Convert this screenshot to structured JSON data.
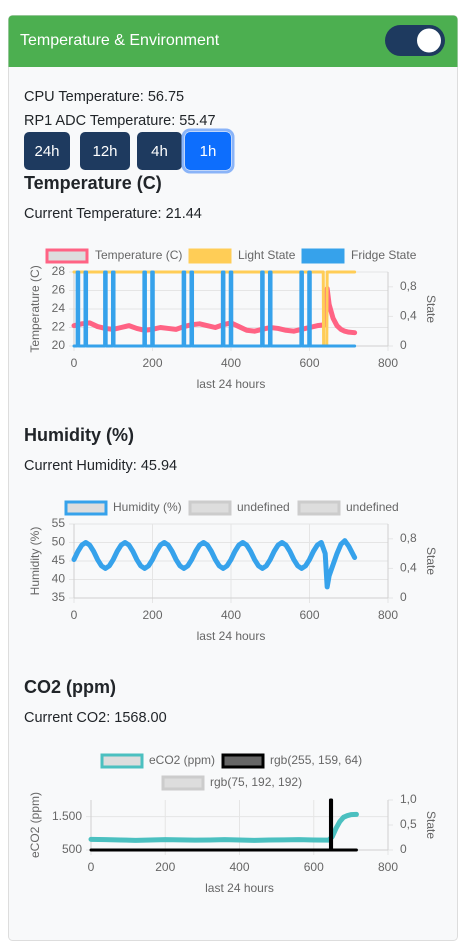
{
  "header": {
    "title": "Temperature & Environment"
  },
  "status": {
    "cpu": "CPU Temperature: 56.75",
    "rp1": "RP1 ADC Temperature: 55.47"
  },
  "buttons": [
    "24h",
    "12h",
    "4h",
    "1h"
  ],
  "active_button": "1h",
  "charts": [
    {
      "type": "line",
      "title": "Temperature (C)",
      "current": "Current Temperature: 21.44",
      "xlabel": "last 24 hours",
      "ylabel": "Temperature (C)",
      "y2label": "State",
      "xlim": [
        0,
        800
      ],
      "xticks": [
        0,
        200,
        400,
        600,
        800
      ],
      "ylim": [
        20,
        28
      ],
      "yticks": [
        20,
        22,
        24,
        26,
        28
      ],
      "y2lim": [
        0,
        1
      ],
      "y2ticks": [
        0,
        {
          "value": 0.4,
          "label": "0,4"
        },
        {
          "value": 0.8,
          "label": "0,8"
        }
      ],
      "grid": true,
      "series": [
        {
          "name": "Temperature (C)",
          "color": "#ff6384",
          "legend_fill": "#dddddd",
          "x": [
            0,
            20,
            40,
            60,
            80,
            100,
            120,
            140,
            160,
            180,
            200,
            220,
            240,
            260,
            280,
            300,
            320,
            340,
            360,
            380,
            400,
            420,
            440,
            460,
            480,
            500,
            520,
            540,
            560,
            580,
            600,
            620,
            640,
            645,
            650,
            660,
            670,
            680,
            690,
            700,
            715
          ],
          "values": [
            22.2,
            22.4,
            22.5,
            22.1,
            21.9,
            21.8,
            22.0,
            22.2,
            21.9,
            21.7,
            21.8,
            22.0,
            21.9,
            21.8,
            22.1,
            22.3,
            22.4,
            22.2,
            22.0,
            22.3,
            22.5,
            22.1,
            21.7,
            21.6,
            21.8,
            22.0,
            21.9,
            21.7,
            21.6,
            21.8,
            22.0,
            22.2,
            22.3,
            26.2,
            24.5,
            23.0,
            22.2,
            21.8,
            21.6,
            21.5,
            21.44
          ]
        },
        {
          "name": "Light State",
          "color": "#ffcd56",
          "legend_fill": "#ffcd56",
          "axis": "y2",
          "x": [
            0,
            635,
            636,
            644,
            645,
            715
          ],
          "values": [
            1,
            1,
            0,
            0,
            1,
            1
          ]
        },
        {
          "name": "Fridge State",
          "color": "#36a2eb",
          "legend_fill": "#36a2eb",
          "axis": "y2",
          "x": [
            0,
            8,
            8,
            12,
            12,
            28,
            28,
            32,
            32,
            78,
            78,
            82,
            82,
            98,
            98,
            102,
            102,
            178,
            178,
            182,
            182,
            198,
            198,
            202,
            202,
            278,
            278,
            282,
            282,
            298,
            298,
            302,
            302,
            378,
            378,
            382,
            382,
            398,
            398,
            402,
            402,
            478,
            478,
            482,
            482,
            498,
            498,
            502,
            502,
            578,
            578,
            582,
            582,
            598,
            598,
            602,
            602,
            715
          ],
          "values": [
            0,
            0,
            1,
            1,
            0,
            0,
            1,
            1,
            0,
            0,
            1,
            1,
            0,
            0,
            1,
            1,
            0,
            0,
            1,
            1,
            0,
            0,
            1,
            1,
            0,
            0,
            1,
            1,
            0,
            0,
            1,
            1,
            0,
            0,
            1,
            1,
            0,
            0,
            1,
            1,
            0,
            0,
            1,
            1,
            0,
            0,
            1,
            1,
            0,
            0,
            1,
            1,
            0,
            0,
            1,
            1,
            0,
            0
          ]
        }
      ]
    },
    {
      "type": "line",
      "title": "Humidity (%)",
      "current": "Current Humidity: 45.94",
      "xlabel": "last 24 hours",
      "ylabel": "Humidity (%)",
      "y2label": "State",
      "xlim": [
        0,
        800
      ],
      "xticks": [
        0,
        200,
        400,
        600,
        800
      ],
      "ylim": [
        35,
        55
      ],
      "yticks": [
        35,
        40,
        45,
        50,
        55
      ],
      "y2lim": [
        0,
        1
      ],
      "y2ticks": [
        0,
        {
          "value": 0.4,
          "label": "0,4"
        },
        {
          "value": 0.8,
          "label": "0,8"
        }
      ],
      "grid": true,
      "series": [
        {
          "name": "Humidity (%)",
          "color": "#36a2eb",
          "legend_fill": "#dddddd",
          "x": [
            0,
            10,
            20,
            30,
            40,
            50,
            60,
            70,
            80,
            90,
            100,
            110,
            120,
            130,
            140,
            150,
            160,
            170,
            180,
            190,
            200,
            210,
            220,
            230,
            240,
            250,
            260,
            270,
            280,
            290,
            300,
            310,
            320,
            330,
            340,
            350,
            360,
            370,
            380,
            390,
            400,
            410,
            420,
            430,
            440,
            450,
            460,
            470,
            480,
            490,
            500,
            510,
            520,
            530,
            540,
            550,
            560,
            570,
            580,
            590,
            600,
            610,
            620,
            630,
            640,
            645,
            650,
            660,
            670,
            680,
            690,
            700,
            715
          ],
          "values": [
            45.4,
            47.6,
            49.3,
            50,
            49.3,
            47.6,
            45.4,
            43.7,
            43,
            43.7,
            45.4,
            47.6,
            49.3,
            50,
            49.3,
            47.6,
            45.4,
            43.7,
            43,
            43.7,
            45.4,
            47.6,
            49.3,
            50,
            49.3,
            47.6,
            45.4,
            43.7,
            43,
            43.7,
            45.4,
            47.6,
            49.3,
            50,
            49.3,
            47.6,
            45.4,
            43.7,
            43,
            43.7,
            45.4,
            47.6,
            49.3,
            50,
            49.3,
            47.6,
            45.4,
            43.7,
            43,
            43.7,
            45.4,
            47.6,
            49.3,
            50,
            49.3,
            47.6,
            45.4,
            43.7,
            43,
            43.7,
            45.4,
            47.6,
            49.3,
            50,
            47,
            38,
            41,
            44,
            47,
            49.5,
            50.5,
            49,
            45.94
          ]
        },
        {
          "name": "undefined",
          "color": "#cccccc",
          "legend_fill": "#dddddd"
        },
        {
          "name": "undefined",
          "color": "#cccccc",
          "legend_fill": "#dddddd"
        }
      ]
    },
    {
      "type": "line",
      "title": "CO2 (ppm)",
      "current": "Current CO2: 1568.00",
      "xlabel": "last 24 hours",
      "ylabel": "eCO2 (ppm)",
      "y2label": "State",
      "xlim": [
        0,
        800
      ],
      "xticks": [
        0,
        200,
        400,
        600,
        800
      ],
      "ylim": [
        500,
        2000
      ],
      "yticks": [
        500,
        {
          "value": 1500,
          "label": "1.500"
        }
      ],
      "y2lim": [
        0,
        1
      ],
      "y2ticks": [
        0,
        {
          "value": 0.5,
          "label": "0,5"
        },
        {
          "value": 1,
          "label": "1,0"
        }
      ],
      "grid": true,
      "series": [
        {
          "name": "eCO2 (ppm)",
          "color": "#4bc0c0",
          "legend_fill": "#dddddd",
          "x": [
            0,
            40,
            80,
            120,
            160,
            200,
            240,
            280,
            320,
            360,
            400,
            440,
            480,
            520,
            560,
            600,
            640,
            650,
            660,
            670,
            680,
            690,
            700,
            715
          ],
          "values": [
            820,
            810,
            800,
            790,
            800,
            810,
            805,
            795,
            800,
            810,
            800,
            790,
            800,
            805,
            810,
            800,
            795,
            900,
            1150,
            1350,
            1480,
            1530,
            1560,
            1568
          ]
        },
        {
          "name": "rgb(255, 159, 64)",
          "color": "#000000",
          "legend_fill": "#666666",
          "axis": "y2",
          "x": [
            0,
            645,
            645,
            648,
            648,
            715
          ],
          "values": [
            0,
            0,
            1,
            1,
            0,
            0
          ]
        },
        {
          "name": "rgb(75, 192, 192)",
          "color": "#cccccc",
          "legend_fill": "#dddddd"
        }
      ]
    }
  ]
}
